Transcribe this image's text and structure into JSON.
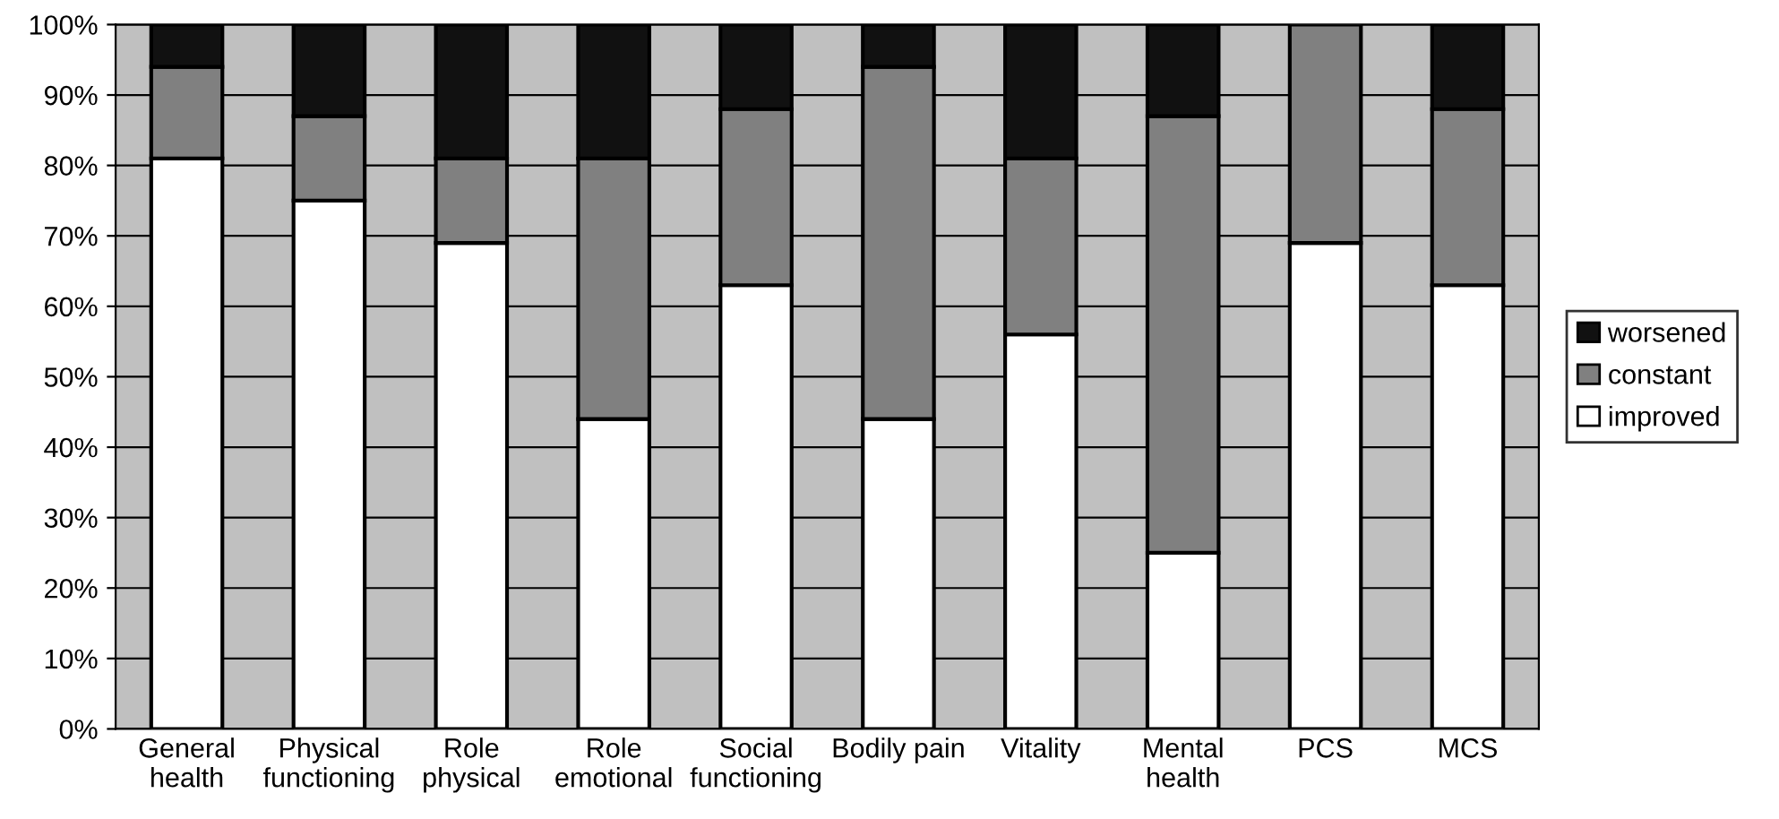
{
  "chart_data": {
    "type": "bar",
    "stacked": true,
    "categories": [
      "General\nhealth",
      "Physical\nfunctioning",
      "Role\nphysical",
      "Role\nemotional",
      "Social\nfunctioning",
      "Bodily pain",
      "Vitality",
      "Mental\nhealth",
      "PCS",
      "MCS"
    ],
    "series": [
      {
        "name": "improved",
        "color": "#ffffff",
        "values": [
          81,
          75,
          69,
          44,
          63,
          44,
          56,
          25,
          69,
          63
        ]
      },
      {
        "name": "constant",
        "color": "#808080",
        "values": [
          13,
          12,
          12,
          37,
          25,
          50,
          25,
          62,
          31,
          25
        ]
      },
      {
        "name": "worsened",
        "color": "#111111",
        "values": [
          6,
          13,
          19,
          19,
          12,
          6,
          19,
          13,
          0,
          12
        ]
      }
    ],
    "ylim": [
      0,
      100
    ],
    "yticks": [
      {
        "value": 0,
        "label": "0%"
      },
      {
        "value": 10,
        "label": "10%"
      },
      {
        "value": 20,
        "label": "20%"
      },
      {
        "value": 30,
        "label": "30%"
      },
      {
        "value": 40,
        "label": "40%"
      },
      {
        "value": 50,
        "label": "50%"
      },
      {
        "value": 60,
        "label": "60%"
      },
      {
        "value": 70,
        "label": "70%"
      },
      {
        "value": 80,
        "label": "80%"
      },
      {
        "value": 90,
        "label": "90%"
      },
      {
        "value": 100,
        "label": "100%"
      }
    ],
    "grid": "y",
    "legend": "right"
  }
}
